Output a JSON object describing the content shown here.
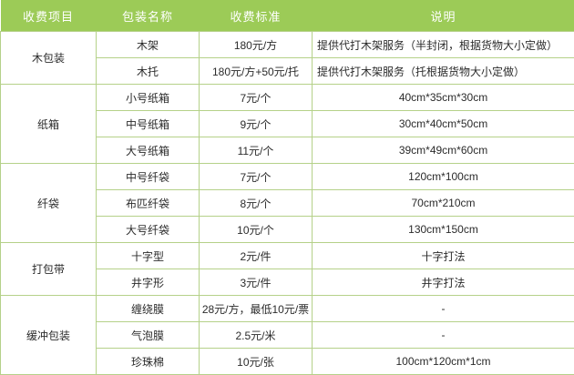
{
  "table": {
    "headers": {
      "charge_item": "收费项目",
      "package_name": "包装名称",
      "charge_standard": "收费标准",
      "description": "说明"
    },
    "groups": [
      {
        "item": "木包装",
        "rows": [
          {
            "name": "木架",
            "price": "180元/方",
            "note": "提供代打木架服务（半封闭，根据货物大小定做）"
          },
          {
            "name": "木托",
            "price": "180元/方+50元/托",
            "note": "提供代打木架服务（托根据货物大小定做）"
          }
        ]
      },
      {
        "item": "纸箱",
        "rows": [
          {
            "name": "小号纸箱",
            "price": "7元/个",
            "note": "40cm*35cm*30cm"
          },
          {
            "name": "中号纸箱",
            "price": "9元/个",
            "note": "30cm*40cm*50cm"
          },
          {
            "name": "大号纸箱",
            "price": "11元/个",
            "note": "39cm*49cm*60cm"
          }
        ]
      },
      {
        "item": "纤袋",
        "rows": [
          {
            "name": "中号纤袋",
            "price": "7元/个",
            "note": "120cm*100cm"
          },
          {
            "name": "布匹纤袋",
            "price": "8元/个",
            "note": "70cm*210cm"
          },
          {
            "name": "大号纤袋",
            "price": "10元/个",
            "note": "130cm*150cm"
          }
        ]
      },
      {
        "item": "打包带",
        "rows": [
          {
            "name": "十字型",
            "price": "2元/件",
            "note": "十字打法"
          },
          {
            "name": "井字形",
            "price": "3元/件",
            "note": "井字打法"
          }
        ]
      },
      {
        "item": "缓冲包装",
        "rows": [
          {
            "name": "缠绕膜",
            "price": "28元/方，最低10元/票",
            "note": "-"
          },
          {
            "name": "气泡膜",
            "price": "2.5元/米",
            "note": "-"
          },
          {
            "name": "珍珠棉",
            "price": "10元/张",
            "note": "100cm*120cm*1cm"
          }
        ]
      }
    ],
    "colors": {
      "header_bg": "#9ccb57",
      "header_text": "#ffffff",
      "border": "#b5d189",
      "body_text": "#2b2b2b"
    }
  }
}
